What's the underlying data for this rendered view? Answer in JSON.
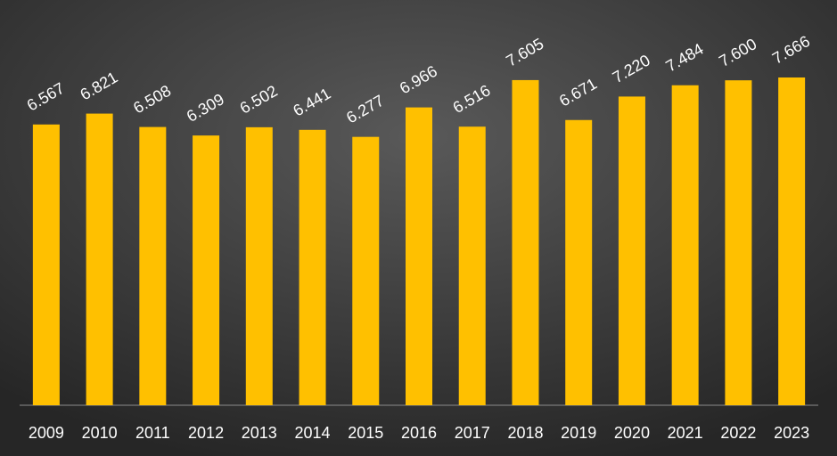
{
  "chart_data": {
    "type": "bar",
    "categories": [
      "2009",
      "2010",
      "2011",
      "2012",
      "2013",
      "2014",
      "2015",
      "2016",
      "2017",
      "2018",
      "2019",
      "2020",
      "2021",
      "2022",
      "2023"
    ],
    "values": [
      6.567,
      6.821,
      6.508,
      6.309,
      6.502,
      6.441,
      6.277,
      6.966,
      6.516,
      7.605,
      6.671,
      7.22,
      7.484,
      7.6,
      7.666
    ],
    "value_labels": [
      "6.567",
      "6.821",
      "6.508",
      "6.309",
      "6.502",
      "6.441",
      "6.277",
      "6.966",
      "6.516",
      "7.605",
      "6.671",
      "7.220",
      "7.484",
      "7.600",
      "7.666"
    ],
    "color": "#ffc000"
  }
}
